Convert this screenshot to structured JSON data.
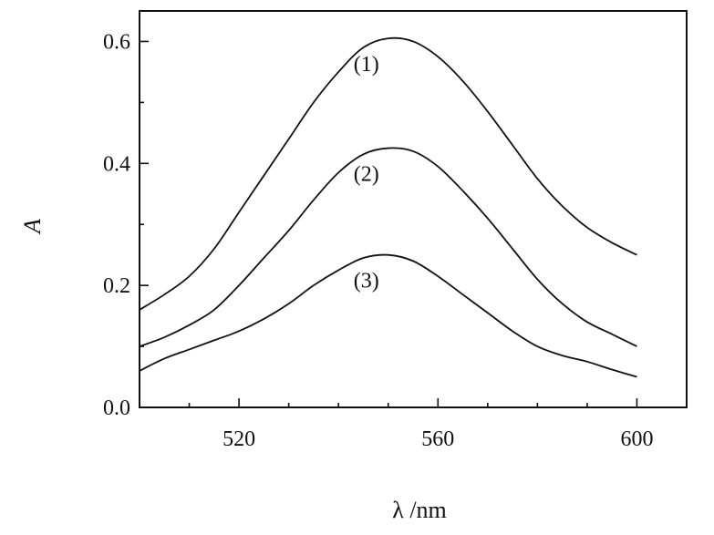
{
  "chart_data": {
    "type": "line",
    "xlabel": "λ /nm",
    "ylabel": "A",
    "xlim": [
      500,
      610
    ],
    "ylim": [
      0,
      0.65
    ],
    "x_ticks": [
      520,
      560,
      600
    ],
    "x_tick_labels": [
      "520",
      "560",
      "600"
    ],
    "y_ticks": [
      0.0,
      0.2,
      0.4,
      0.6
    ],
    "y_tick_labels": [
      "0.0",
      "0.2",
      "0.4",
      "0.6"
    ],
    "grid": false,
    "legend": "none",
    "series": [
      {
        "label": "(1)",
        "x": [
          500,
          505,
          510,
          515,
          520,
          525,
          530,
          535,
          540,
          545,
          550,
          555,
          560,
          565,
          570,
          575,
          580,
          585,
          590,
          595,
          600
        ],
        "values": [
          0.16,
          0.185,
          0.215,
          0.26,
          0.32,
          0.38,
          0.44,
          0.5,
          0.55,
          0.59,
          0.605,
          0.6,
          0.575,
          0.535,
          0.485,
          0.43,
          0.375,
          0.33,
          0.295,
          0.27,
          0.25
        ]
      },
      {
        "label": "(2)",
        "x": [
          500,
          505,
          510,
          515,
          520,
          525,
          530,
          535,
          540,
          545,
          550,
          555,
          560,
          565,
          570,
          575,
          580,
          585,
          590,
          595,
          600
        ],
        "values": [
          0.1,
          0.115,
          0.135,
          0.16,
          0.2,
          0.245,
          0.29,
          0.34,
          0.385,
          0.415,
          0.425,
          0.42,
          0.395,
          0.355,
          0.31,
          0.26,
          0.21,
          0.17,
          0.14,
          0.12,
          0.1
        ]
      },
      {
        "label": "(3)",
        "x": [
          500,
          505,
          510,
          515,
          520,
          525,
          530,
          535,
          540,
          545,
          550,
          555,
          560,
          565,
          570,
          575,
          580,
          585,
          590,
          595,
          600
        ],
        "values": [
          0.06,
          0.08,
          0.095,
          0.11,
          0.125,
          0.145,
          0.17,
          0.2,
          0.225,
          0.245,
          0.25,
          0.24,
          0.215,
          0.185,
          0.155,
          0.125,
          0.1,
          0.085,
          0.075,
          0.062,
          0.05
        ]
      }
    ]
  }
}
